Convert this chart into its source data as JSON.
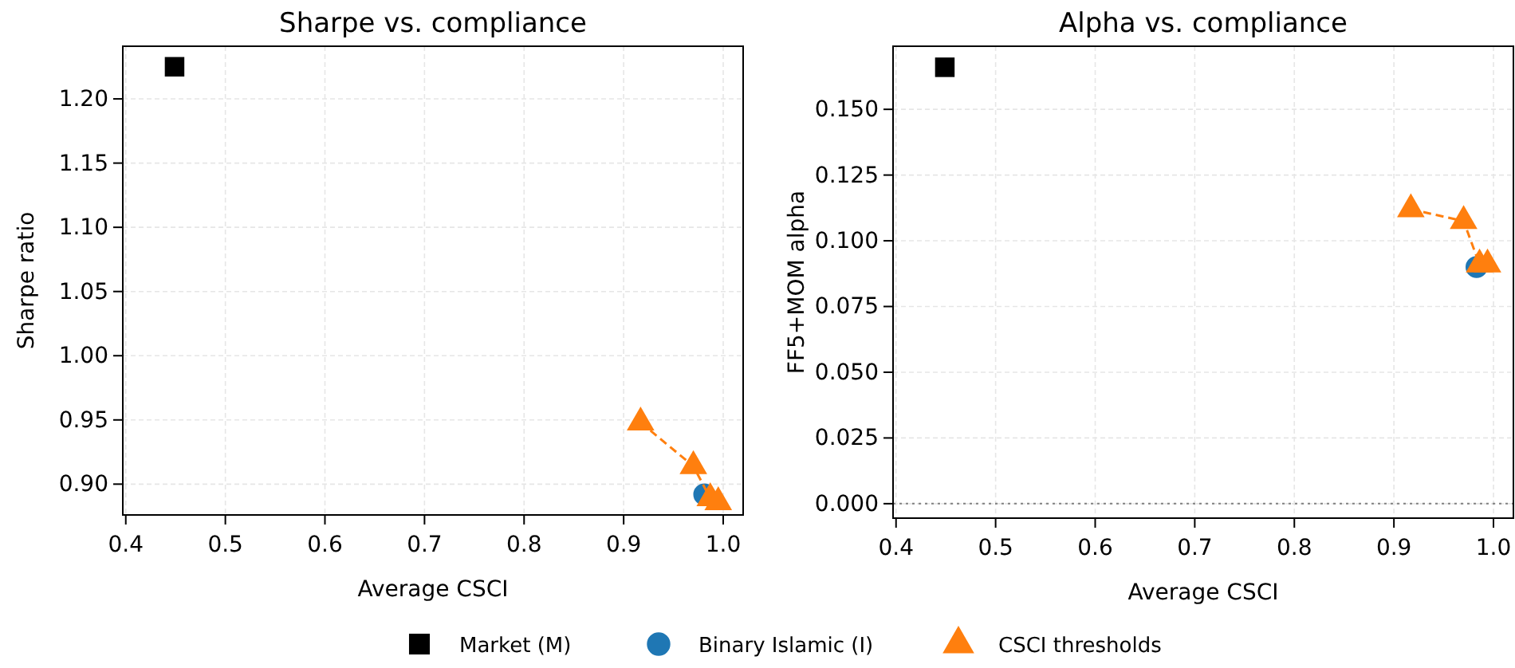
{
  "chart_data": [
    {
      "type": "scatter",
      "title": "Sharpe vs. compliance",
      "xlabel": "Average CSCI",
      "ylabel": "Sharpe ratio",
      "xlim": [
        0.397,
        1.02
      ],
      "xticks": [
        {
          "value": 0.4,
          "label": "0.4"
        },
        {
          "value": 0.5,
          "label": "0.5"
        },
        {
          "value": 0.6,
          "label": "0.6"
        },
        {
          "value": 0.7,
          "label": "0.7"
        },
        {
          "value": 0.8,
          "label": "0.8"
        },
        {
          "value": 0.9,
          "label": "0.9"
        },
        {
          "value": 1.0,
          "label": "1.0"
        }
      ],
      "ylim": [
        0.876,
        1.241
      ],
      "yticks": [
        {
          "value": 0.9,
          "label": "0.90"
        },
        {
          "value": 0.95,
          "label": "0.95"
        },
        {
          "value": 1.0,
          "label": "1.00"
        },
        {
          "value": 1.05,
          "label": "1.05"
        },
        {
          "value": 1.1,
          "label": "1.10"
        },
        {
          "value": 1.15,
          "label": "1.15"
        },
        {
          "value": 1.2,
          "label": "1.20"
        }
      ],
      "grid": true,
      "legend": "bottom",
      "series": [
        {
          "name": "Market (M)",
          "type": "scatter",
          "marker": "square",
          "color": "#000000",
          "x": [
            0.449
          ],
          "values": [
            1.225
          ]
        },
        {
          "name": "Binary Islamic (I)",
          "type": "scatter",
          "marker": "circle",
          "color": "#1f77b4",
          "x": [
            0.981
          ],
          "values": [
            0.892
          ]
        },
        {
          "name": "CSCI thresholds",
          "type": "line",
          "marker": "triangle",
          "line_style": "dashed",
          "color": "#ff7f0e",
          "x": [
            0.917,
            0.97,
            0.987,
            0.995
          ],
          "values": [
            0.948,
            0.914,
            0.889,
            0.886
          ]
        }
      ]
    },
    {
      "type": "scatter",
      "title": "Alpha vs. compliance",
      "xlabel": "Average CSCI",
      "ylabel": "FF5+MOM alpha",
      "xlim": [
        0.397,
        1.02
      ],
      "xticks": [
        {
          "value": 0.4,
          "label": "0.4"
        },
        {
          "value": 0.5,
          "label": "0.5"
        },
        {
          "value": 0.6,
          "label": "0.6"
        },
        {
          "value": 0.7,
          "label": "0.7"
        },
        {
          "value": 0.8,
          "label": "0.8"
        },
        {
          "value": 0.9,
          "label": "0.9"
        },
        {
          "value": 1.0,
          "label": "1.0"
        }
      ],
      "ylim": [
        -0.0055,
        0.174
      ],
      "yticks": [
        {
          "value": 0,
          "label": "0.000"
        },
        {
          "value": 0.025,
          "label": "0.025"
        },
        {
          "value": 0.05,
          "label": "0.050"
        },
        {
          "value": 0.075,
          "label": "0.075"
        },
        {
          "value": 0.1,
          "label": "0.100"
        },
        {
          "value": 0.125,
          "label": "0.125"
        },
        {
          "value": 0.15,
          "label": "0.150"
        }
      ],
      "grid": true,
      "ref_lines": [
        {
          "axis": "y",
          "value": 0,
          "color": "#808080",
          "line_style": "dotted"
        }
      ],
      "series": [
        {
          "type": "scatter",
          "marker": "square",
          "color": "#000000",
          "x": [
            0.449
          ],
          "values": [
            0.166
          ]
        },
        {
          "type": "scatter",
          "marker": "circle",
          "color": "#1f77b4",
          "x": [
            0.983
          ],
          "values": [
            0.09
          ]
        },
        {
          "type": "line",
          "marker": "triangle",
          "line_style": "dashed",
          "color": "#ff7f0e",
          "x": [
            0.917,
            0.97,
            0.986,
            0.994
          ],
          "values": [
            0.112,
            0.1075,
            0.091,
            0.091
          ]
        }
      ]
    }
  ]
}
